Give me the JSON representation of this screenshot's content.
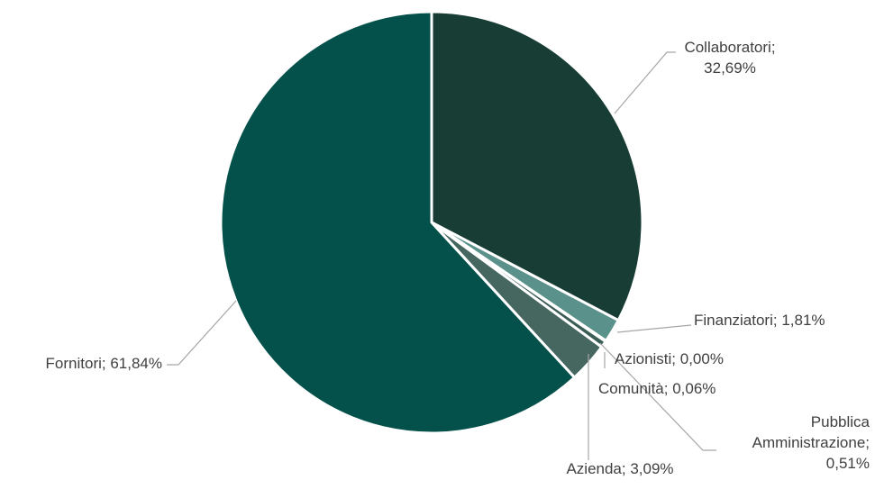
{
  "chart_data": {
    "type": "pie",
    "title": "",
    "colors": {
      "Collaboratori": "#173d34",
      "Finanziatori": "#5a918a",
      "Azionisti": "#2e6b62",
      "Comunità": "#1c4a42",
      "Pubblica Amministrazione": "#3b5d56",
      "Azienda": "#466660",
      "Fornitori": "#03514a"
    },
    "slices": [
      {
        "name": "Collaboratori",
        "value": 32.69,
        "label_lines": [
          "Collaboratori;",
          "32,69%"
        ]
      },
      {
        "name": "Finanziatori",
        "value": 1.81,
        "label_lines": [
          "Finanziatori; 1,81%"
        ]
      },
      {
        "name": "Azionisti",
        "value": 0.0,
        "label_lines": [
          "Azionisti; 0,00%"
        ]
      },
      {
        "name": "Comunità",
        "value": 0.06,
        "label_lines": [
          "Comunità; 0,06%"
        ]
      },
      {
        "name": "Pubblica Amministrazione",
        "value": 0.51,
        "label_lines": [
          "Pubblica",
          "Amministrazione;",
          "0,51%"
        ]
      },
      {
        "name": "Azienda",
        "value": 3.09,
        "label_lines": [
          "Azienda; 3,09%"
        ]
      },
      {
        "name": "Fornitori",
        "value": 61.84,
        "label_lines": [
          "Fornitori; 61,84%"
        ]
      }
    ],
    "legend": "none",
    "data_labels": "outside with leader lines"
  }
}
